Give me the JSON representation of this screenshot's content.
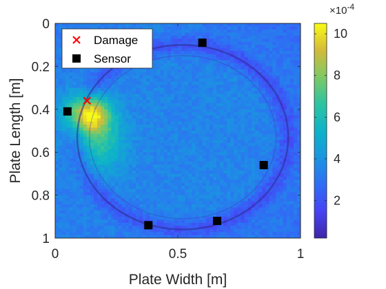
{
  "chart_data": {
    "type": "heatmap",
    "xlabel": "Plate Width [m]",
    "ylabel": "Plate Length [m]",
    "xlim": [
      0,
      1
    ],
    "ylim": [
      0,
      1
    ],
    "y_reversed": true,
    "x_ticks": [
      "0",
      "0.5",
      "1"
    ],
    "y_ticks": [
      "0",
      "0.2",
      "0.4",
      "0.6",
      "0.8",
      "1"
    ],
    "grid": false,
    "colormap": "parula",
    "colorbar": {
      "ticks": [
        "2",
        "4",
        "6",
        "8",
        "10"
      ],
      "tick_values": [
        2,
        4,
        6,
        8,
        10
      ],
      "range": [
        0.2,
        10.5
      ],
      "exponent_label": "×10",
      "exponent_power": "-4"
    },
    "legend": {
      "position": "top-left",
      "entries": [
        {
          "label": "Damage",
          "marker": "x",
          "color": "#ff0000"
        },
        {
          "label": "Sensor",
          "marker": "square",
          "color": "#000000"
        }
      ]
    },
    "damage": [
      {
        "x": 0.13,
        "y": 0.36
      }
    ],
    "sensors": [
      {
        "x": 0.05,
        "y": 0.41
      },
      {
        "x": 0.6,
        "y": 0.09
      },
      {
        "x": 0.85,
        "y": 0.66
      },
      {
        "x": 0.38,
        "y": 0.94
      },
      {
        "x": 0.66,
        "y": 0.92
      }
    ],
    "field": {
      "background_level": 3.5,
      "hotspots": [
        {
          "x": 0.13,
          "y": 0.42,
          "sx": 0.06,
          "sy": 0.06,
          "amp": 7.0
        },
        {
          "x": 0.18,
          "y": 0.55,
          "sx": 0.07,
          "sy": 0.1,
          "amp": 3.0
        }
      ],
      "ring": {
        "cx": 0.52,
        "cy": 0.53,
        "r": 0.43,
        "width": 0.03,
        "depth": 1.4
      }
    }
  }
}
